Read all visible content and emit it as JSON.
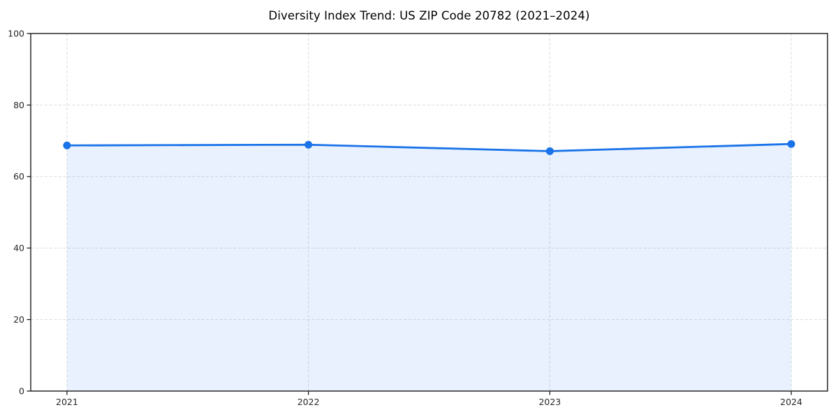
{
  "chart_data": {
    "type": "line",
    "title": "Diversity Index Trend: US ZIP Code 20782 (2021–2024)",
    "x": [
      "2021",
      "2022",
      "2023",
      "2024"
    ],
    "series": [
      {
        "name": "Diversity Index",
        "values": [
          68.7,
          68.9,
          67.1,
          69.1
        ]
      }
    ],
    "xlabel": "",
    "ylabel": "",
    "ylim": [
      0,
      100
    ],
    "yticks": [
      0,
      20,
      40,
      60,
      80,
      100
    ],
    "grid": "dashed",
    "legend_position": "none",
    "area_fill": true,
    "colors": {
      "line": "#1a73e8",
      "marker": "#1a73e8",
      "area": "#1a73e8",
      "area_opacity": 0.1,
      "grid": "#dcdcdc",
      "spine": "#1a1a1a",
      "tick_text": "#262626",
      "background": "#ffffff"
    }
  }
}
